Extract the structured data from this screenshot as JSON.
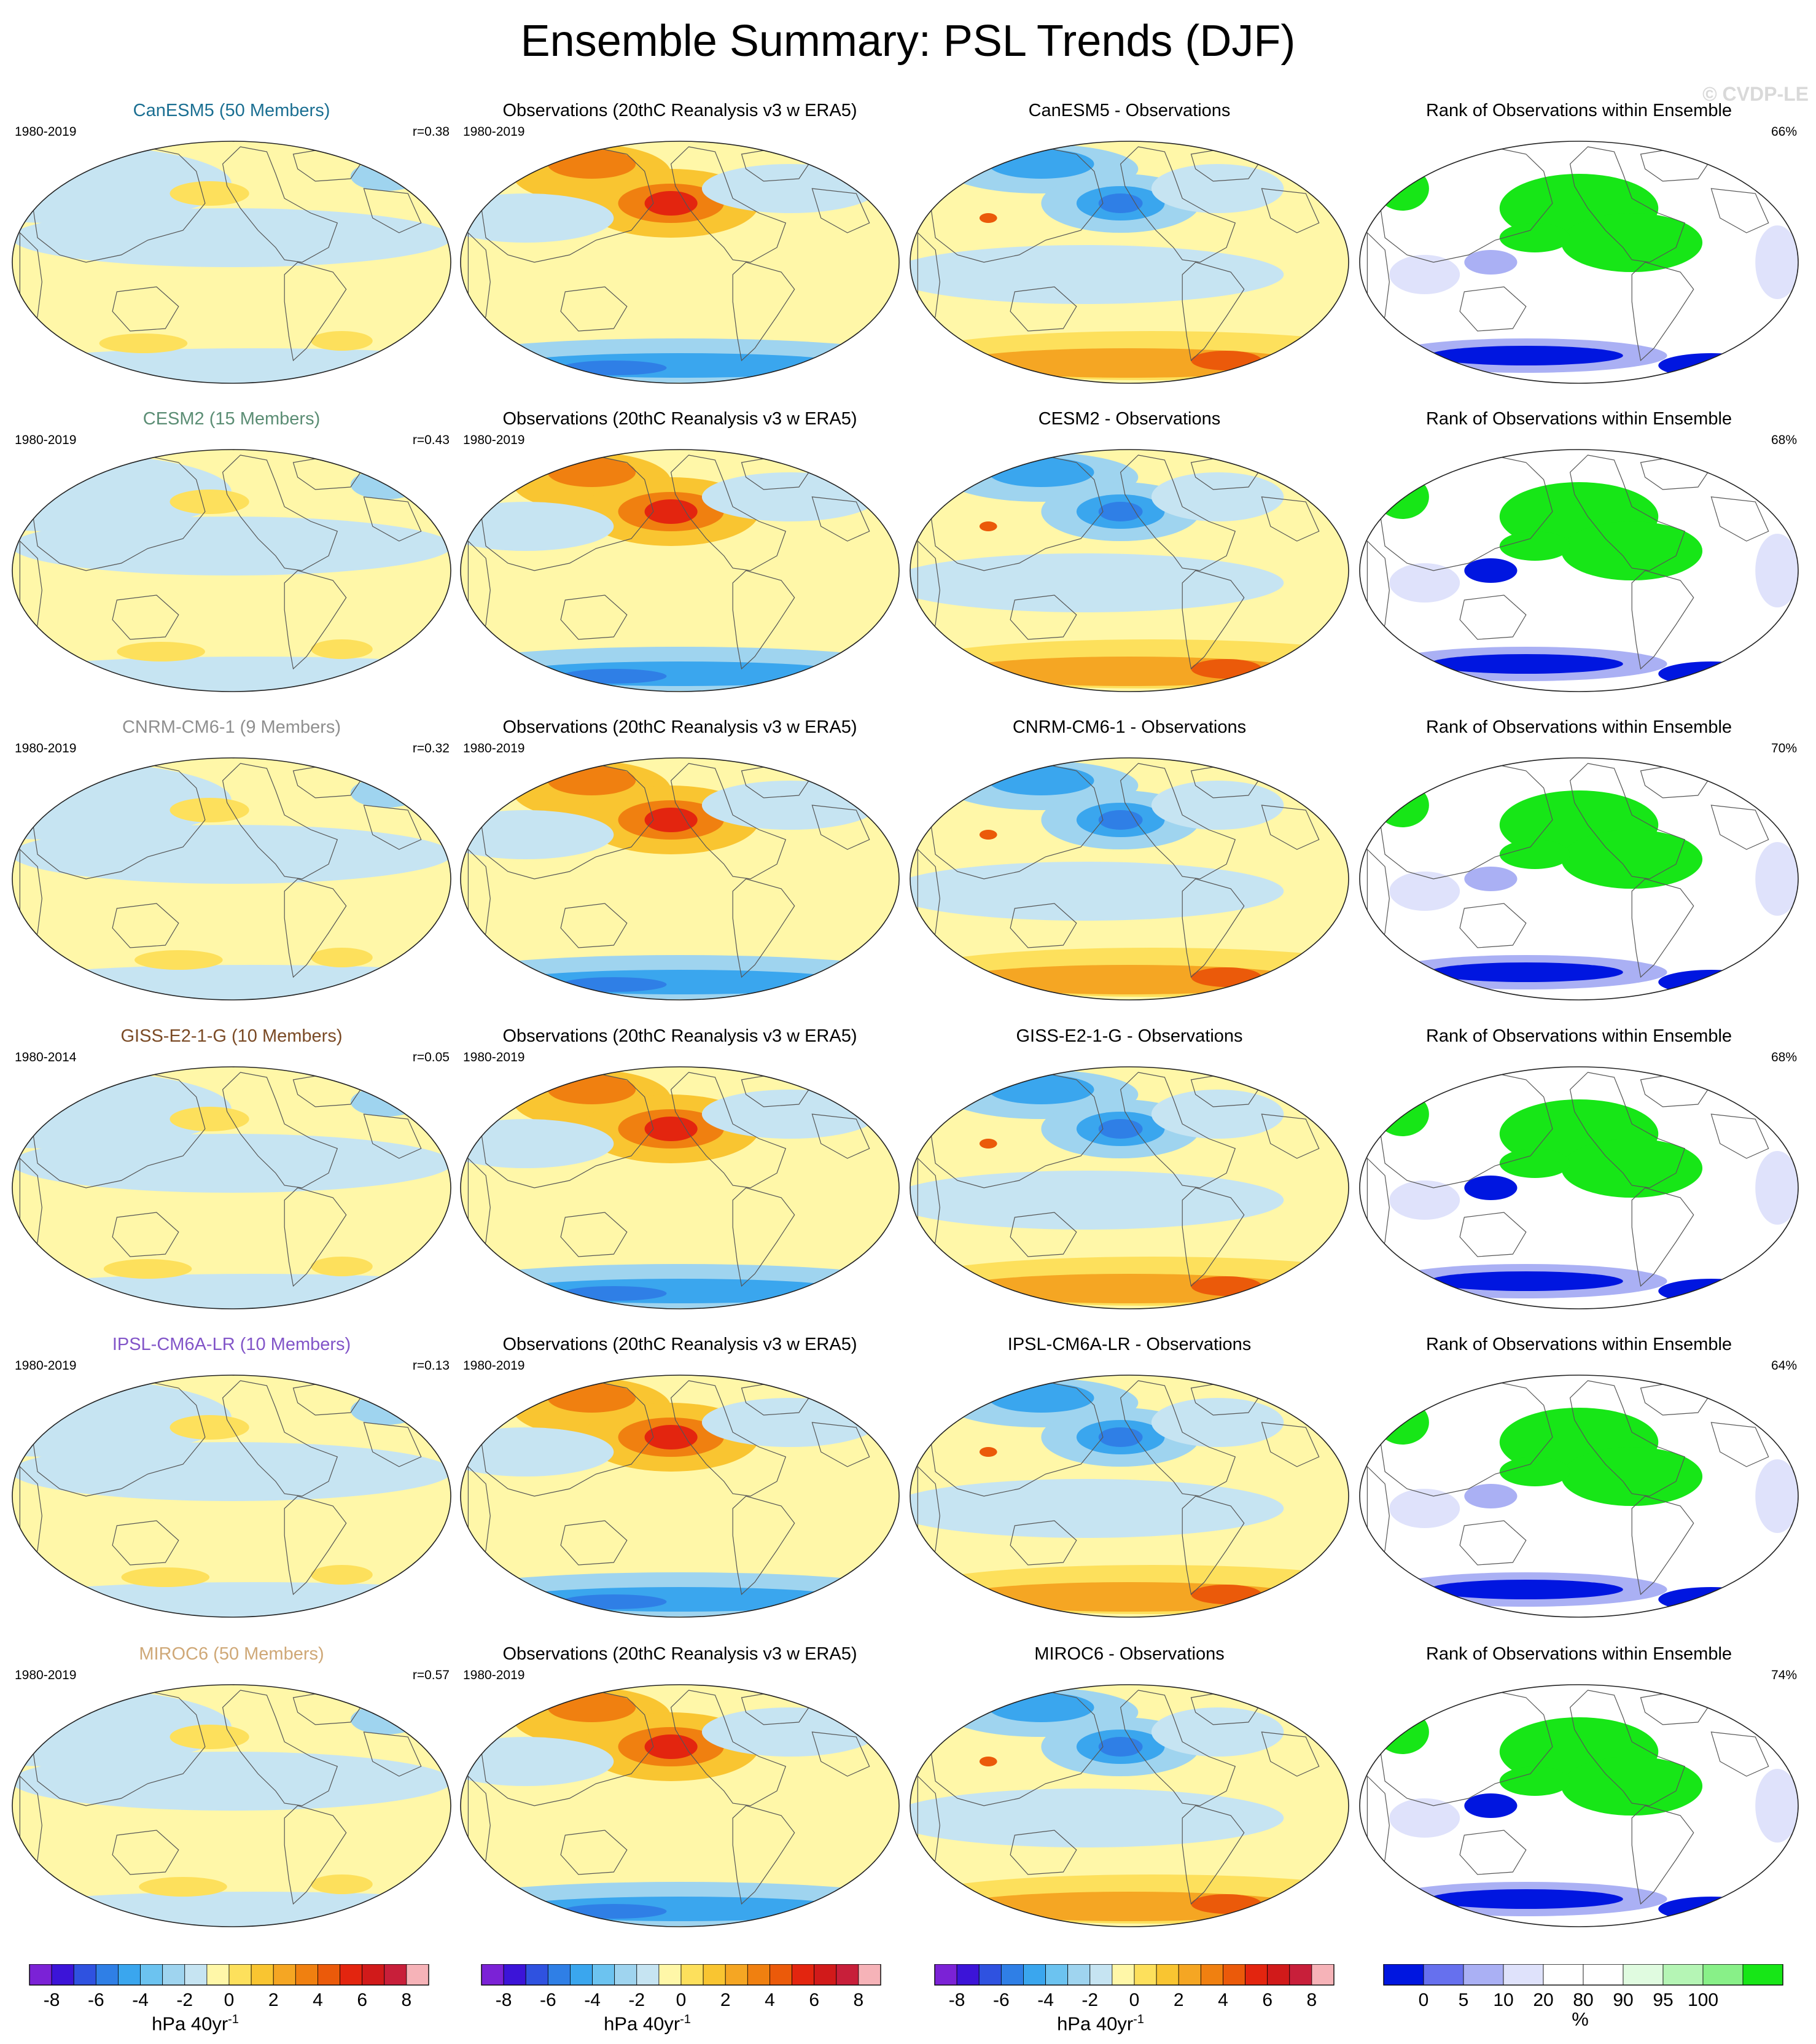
{
  "title": "Ensemble Summary: PSL Trends (DJF)",
  "watermark": "© CVDP-LE",
  "colors": {
    "trend_scale": [
      "#7b22d6",
      "#3c14d8",
      "#2f52e0",
      "#2f7fe6",
      "#3aa6ee",
      "#6cc3f0",
      "#9fd4ef",
      "#c6e4f2",
      "#fff7a8",
      "#fde05c",
      "#f9c531",
      "#f5a623",
      "#f08010",
      "#eb5a0a",
      "#e3250f",
      "#d11a1a",
      "#c81f3a",
      "#f6b3b8"
    ],
    "rank_scale": [
      "#0016e0",
      "#6670ee",
      "#aab0f4",
      "#dfe2fb",
      "#ffffff",
      "#ffffff",
      "#e0fbe0",
      "#b5f5b5",
      "#88f088",
      "#17e617"
    ],
    "rank_low": "#0016e0",
    "rank_high": "#17e617",
    "trend_pos": "#e3250f",
    "trend_neg": "#2f52e0",
    "accent_canesm5": "#1b6f92",
    "accent_cesm2": "#5b8d74",
    "accent_cnrm": "#8f8f8f",
    "accent_giss": "#7a4a25",
    "accent_ipsl": "#8255c8",
    "accent_miroc": "#cfa877"
  },
  "rows": [
    {
      "model": "CanESM5",
      "color": "#1b6f92",
      "model_title": "CanESM5 (50 Members)",
      "model_years": "1980-2019",
      "corr": "r=0.38",
      "obs_title": "Observations (20thC Reanalysis v3 w ERA5)",
      "obs_years": "1980-2019",
      "diff_title": "CanESM5 - Observations",
      "rank_title": "Rank of Observations within Ensemble",
      "rank_pct": "66%"
    },
    {
      "model": "CESM2",
      "color": "#5b8d74",
      "model_title": "CESM2 (15 Members)",
      "model_years": "1980-2019",
      "corr": "r=0.43",
      "obs_title": "Observations (20thC Reanalysis v3 w ERA5)",
      "obs_years": "1980-2019",
      "diff_title": "CESM2 - Observations",
      "rank_title": "Rank of Observations within Ensemble",
      "rank_pct": "68%"
    },
    {
      "model": "CNRM-CM6-1",
      "color": "#8f8f8f",
      "model_title": "CNRM-CM6-1 (9 Members)",
      "model_years": "1980-2019",
      "corr": "r=0.32",
      "obs_title": "Observations (20thC Reanalysis v3 w ERA5)",
      "obs_years": "1980-2019",
      "diff_title": "CNRM-CM6-1 - Observations",
      "rank_title": "Rank of Observations within Ensemble",
      "rank_pct": "70%"
    },
    {
      "model": "GISS-E2-1-G",
      "color": "#7a4a25",
      "model_title": "GISS-E2-1-G (10 Members)",
      "model_years": "1980-2014",
      "corr": "r=0.05",
      "obs_title": "Observations (20thC Reanalysis v3 w ERA5)",
      "obs_years": "1980-2019",
      "diff_title": "GISS-E2-1-G - Observations",
      "rank_title": "Rank of Observations within Ensemble",
      "rank_pct": "68%"
    },
    {
      "model": "IPSL-CM6A-LR",
      "color": "#8255c8",
      "model_title": "IPSL-CM6A-LR (10 Members)",
      "model_years": "1980-2019",
      "corr": "r=0.13",
      "obs_title": "Observations (20thC Reanalysis v3 w ERA5)",
      "obs_years": "1980-2019",
      "diff_title": "IPSL-CM6A-LR - Observations",
      "rank_title": "Rank of Observations within Ensemble",
      "rank_pct": "64%"
    },
    {
      "model": "MIROC6",
      "color": "#cfa877",
      "model_title": "MIROC6 (50 Members)",
      "model_years": "1980-2019",
      "corr": "r=0.57",
      "obs_title": "Observations (20thC Reanalysis v3 w ERA5)",
      "obs_years": "1980-2019",
      "diff_title": "MIROC6 - Observations",
      "rank_title": "Rank of Observations within Ensemble",
      "rank_pct": "74%"
    }
  ],
  "chart_data": {
    "type": "heatmap",
    "projection": "global map",
    "variable": "PSL trends",
    "season": "DJF",
    "colorbars": [
      {
        "label": "hPa 40yr",
        "label_sup": "-1",
        "ticks": [
          "-8",
          "-6",
          "-4",
          "-2",
          "0",
          "2",
          "4",
          "6",
          "8"
        ],
        "levels": [
          -9,
          -8,
          -7,
          -6,
          -5,
          -4,
          -3,
          -2,
          -1,
          0,
          1,
          2,
          3,
          4,
          5,
          6,
          7,
          8,
          9
        ]
      },
      {
        "label": "hPa 40yr",
        "label_sup": "-1",
        "ticks": [
          "-8",
          "-6",
          "-4",
          "-2",
          "0",
          "2",
          "4",
          "6",
          "8"
        ],
        "levels": [
          -9,
          -8,
          -7,
          -6,
          -5,
          -4,
          -3,
          -2,
          -1,
          0,
          1,
          2,
          3,
          4,
          5,
          6,
          7,
          8,
          9
        ]
      },
      {
        "label": "hPa 40yr",
        "label_sup": "-1",
        "ticks": [
          "-8",
          "-6",
          "-4",
          "-2",
          "0",
          "2",
          "4",
          "6",
          "8"
        ],
        "levels": [
          -9,
          -8,
          -7,
          -6,
          -5,
          -4,
          -3,
          -2,
          -1,
          0,
          1,
          2,
          3,
          4,
          5,
          6,
          7,
          8,
          9
        ]
      },
      {
        "label": "%",
        "ticks": [
          "0",
          "5",
          "10",
          "20",
          "80",
          "90",
          "95",
          "100"
        ]
      }
    ]
  }
}
